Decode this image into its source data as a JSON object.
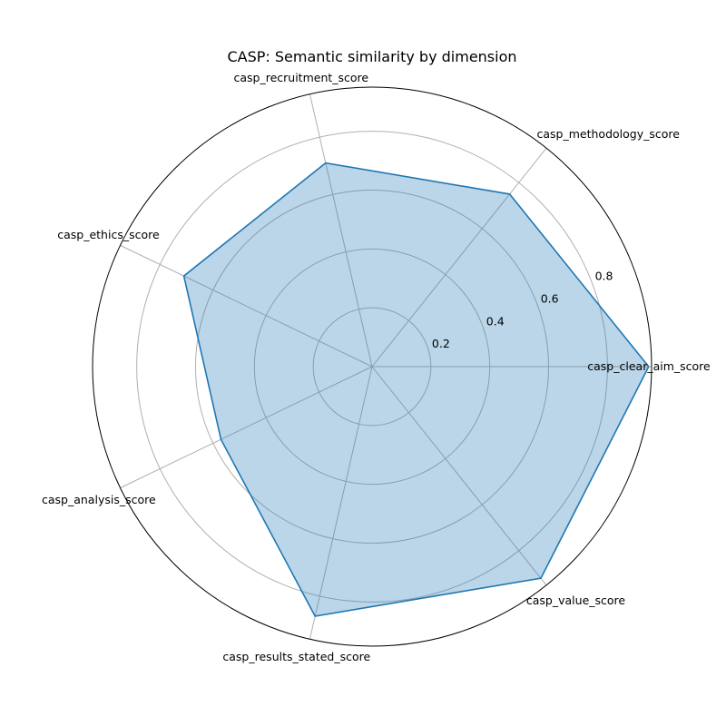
{
  "chart_data": {
    "type": "radar",
    "title": "CASP: Semantic similarity by dimension",
    "categories": [
      "casp_clear_aim_score",
      "casp_methodology_score",
      "casp_recruitment_score",
      "casp_ethics_score",
      "casp_analysis_score",
      "casp_results_stated_score",
      "casp_value_score"
    ],
    "series": [
      {
        "values": [
          0.94,
          0.75,
          0.71,
          0.71,
          0.57,
          0.87,
          0.92
        ],
        "color": "#1f77b4",
        "fill_opacity": 0.3
      }
    ],
    "r_ticks": [
      "0.2",
      "0.4",
      "0.6",
      "0.8"
    ],
    "rlim": [
      0,
      0.95
    ],
    "grid": true
  }
}
